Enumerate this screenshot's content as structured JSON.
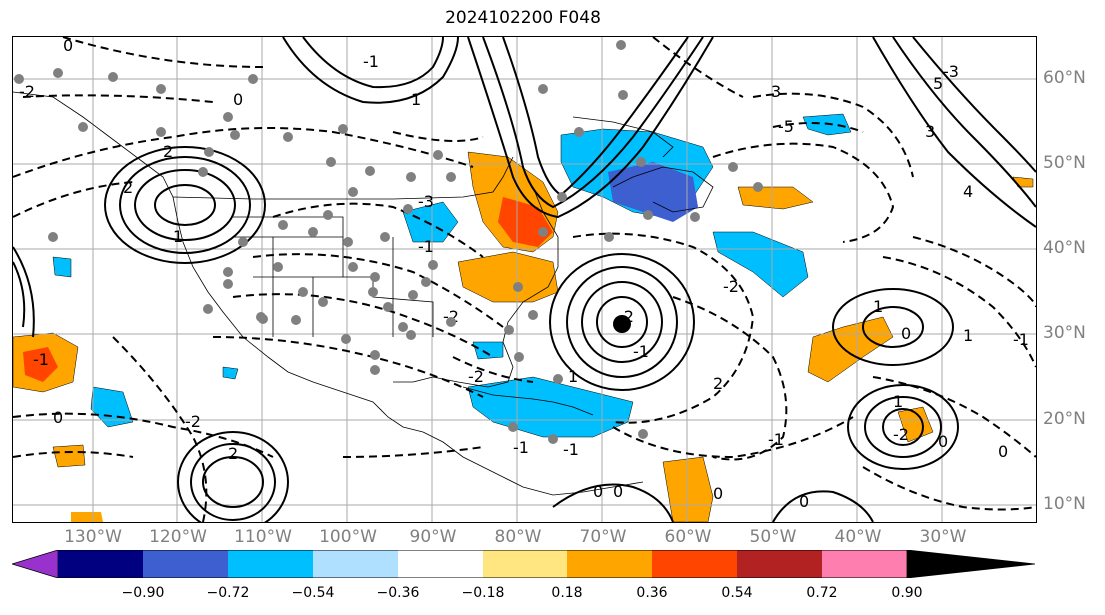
{
  "title": "2024102200 F048",
  "map": {
    "projection": "lat-lon",
    "extent_lon": [
      -138,
      -17
    ],
    "extent_lat": [
      8,
      65
    ],
    "grid": true,
    "lon_labels": [
      "130°W",
      "120°W",
      "110°W",
      "100°W",
      "90°W",
      "80°W",
      "70°W",
      "60°W",
      "50°W",
      "40°W",
      "30°W"
    ],
    "lat_labels": [
      "10°N",
      "20°N",
      "30°N",
      "40°N",
      "50°N",
      "60°N"
    ],
    "contour_labels": [
      "0",
      "0",
      "0",
      "-2",
      "2",
      "-1",
      "-3",
      "2",
      "1",
      "-2",
      "-1",
      "1",
      "-2",
      "2",
      "-1",
      "-5",
      "3",
      "-2",
      "-1",
      "1",
      "0",
      "1",
      "-2",
      "0",
      "0",
      "-1",
      "0",
      "-1",
      "2",
      "-2",
      "0",
      "-2",
      "1",
      "-1",
      "3",
      "-3",
      "5",
      "4",
      "-1",
      "1",
      "0",
      "0"
    ],
    "storm_marker": "black-dot"
  },
  "colorbar": {
    "ticks": [
      "−0.90",
      "−0.72",
      "−0.54",
      "−0.36",
      "−0.18",
      "0.18",
      "0.36",
      "0.54",
      "0.72",
      "0.90"
    ],
    "colors": [
      "#9932cc",
      "#000080",
      "#3e5fd0",
      "#00bfff",
      "#b0e0ff",
      "#ffffff",
      "#ffe680",
      "#ffa500",
      "#ff4500",
      "#b22222",
      "#ff7eb0"
    ]
  }
}
